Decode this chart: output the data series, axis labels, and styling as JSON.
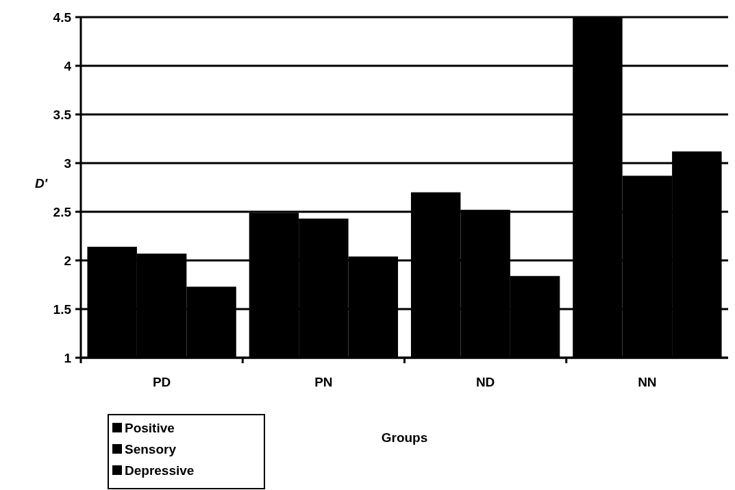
{
  "chart_data": {
    "type": "bar",
    "xlabel": "Groups",
    "ylabel": "D'",
    "categories": [
      "PD",
      "PN",
      "ND",
      "NN"
    ],
    "series": [
      {
        "name": "Positive",
        "color": "#000000",
        "values": [
          2.14,
          2.49,
          2.7,
          4.5
        ]
      },
      {
        "name": "Sensory",
        "color": "#000000",
        "values": [
          2.07,
          2.43,
          2.52,
          2.87
        ]
      },
      {
        "name": "Depressive",
        "color": "#000000",
        "values": [
          1.73,
          2.04,
          1.84,
          3.12
        ]
      }
    ],
    "ylim": [
      1,
      4.5
    ],
    "yticks": [
      1,
      1.5,
      2,
      2.5,
      3,
      3.5,
      4,
      4.5
    ],
    "grid": "y",
    "legend": "bottom left"
  }
}
